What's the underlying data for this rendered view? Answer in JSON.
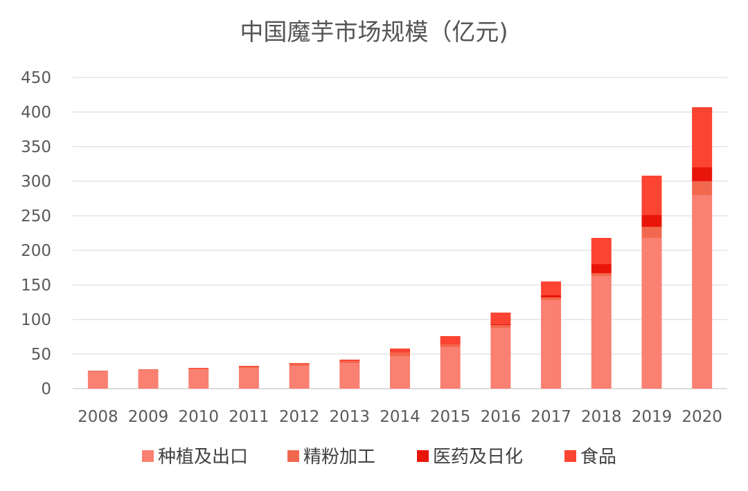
{
  "chart_data": {
    "type": "bar",
    "stacked": true,
    "title": "中国魔芋市场规模（亿元)",
    "xlabel": "",
    "ylabel": "",
    "ylim": [
      0,
      450
    ],
    "yticks": [
      "0",
      "50",
      "100",
      "150",
      "200",
      "250",
      "300",
      "350",
      "400",
      "450"
    ],
    "grid": true,
    "legend_position": "bottom",
    "categories": [
      "2008",
      "2009",
      "2010",
      "2011",
      "2012",
      "2013",
      "2014",
      "2015",
      "2016",
      "2017",
      "2018",
      "2019",
      "2020"
    ],
    "series": [
      {
        "name": "种植及出口",
        "color": "#fa8072",
        "values": [
          25,
          27,
          28,
          30,
          33,
          37,
          47,
          60,
          88,
          128,
          163,
          218,
          280
        ]
      },
      {
        "name": "精粉加工",
        "color": "#f2684f",
        "values": [
          1,
          1,
          1,
          2,
          3,
          3,
          5,
          4,
          4,
          4,
          4,
          16,
          20
        ]
      },
      {
        "name": "医药及日化",
        "color": "#e8160a",
        "values": [
          0,
          0,
          0,
          0,
          0,
          0,
          0,
          0,
          1,
          3,
          13,
          17,
          20
        ]
      },
      {
        "name": "食品",
        "color": "#fc4432",
        "values": [
          0,
          0,
          1,
          1,
          1,
          2,
          6,
          12,
          17,
          20,
          38,
          57,
          87
        ]
      }
    ]
  }
}
